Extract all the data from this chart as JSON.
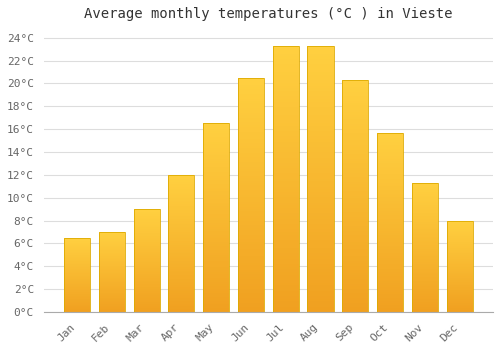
{
  "title": "Average monthly temperatures (°C ) in Vieste",
  "months": [
    "Jan",
    "Feb",
    "Mar",
    "Apr",
    "May",
    "Jun",
    "Jul",
    "Aug",
    "Sep",
    "Oct",
    "Nov",
    "Dec"
  ],
  "values": [
    6.5,
    7.0,
    9.0,
    12.0,
    16.5,
    20.5,
    23.3,
    23.3,
    20.3,
    15.7,
    11.3,
    8.0
  ],
  "bar_color_top": "#FFD040",
  "bar_color_bottom": "#F0A020",
  "bar_edge_color": "#DDAA00",
  "background_color": "#FFFFFF",
  "grid_color": "#DDDDDD",
  "text_color": "#666666",
  "ylim": [
    0,
    25
  ],
  "ytick_step": 2,
  "title_fontsize": 10,
  "tick_fontsize": 8,
  "figsize": [
    5.0,
    3.5
  ],
  "dpi": 100
}
